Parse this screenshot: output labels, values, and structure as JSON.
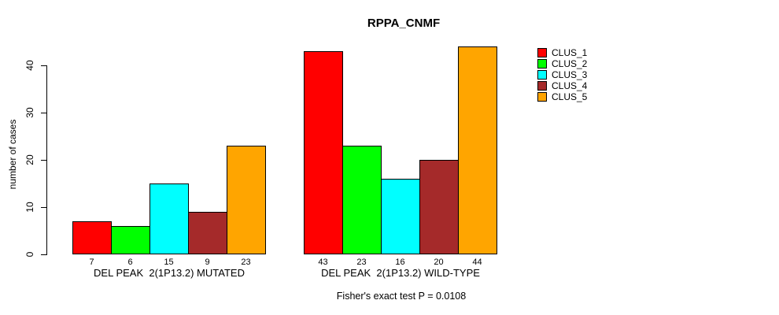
{
  "chart_data": {
    "type": "bar",
    "title": "RPPA_CNMF",
    "ylabel": "number of cases",
    "ylim": [
      0,
      40
    ],
    "yticks": [
      0,
      10,
      20,
      30,
      40
    ],
    "grid": false,
    "legend_position": "right",
    "legend": [
      {
        "name": "CLUS_1",
        "color": "#FF0000"
      },
      {
        "name": "CLUS_2",
        "color": "#00FF00"
      },
      {
        "name": "CLUS_3",
        "color": "#00FFFF"
      },
      {
        "name": "CLUS_4",
        "color": "#A52A2A"
      },
      {
        "name": "CLUS_5",
        "color": "#FFA500"
      }
    ],
    "groups": [
      {
        "label": "DEL PEAK  2(1P13.2) MUTATED",
        "values": [
          7,
          6,
          15,
          9,
          23
        ]
      },
      {
        "label": "DEL PEAK  2(1P13.2) WILD-TYPE",
        "values": [
          43,
          23,
          16,
          20,
          44
        ]
      }
    ],
    "footer": "Fisher's exact test P = 0.0108"
  }
}
